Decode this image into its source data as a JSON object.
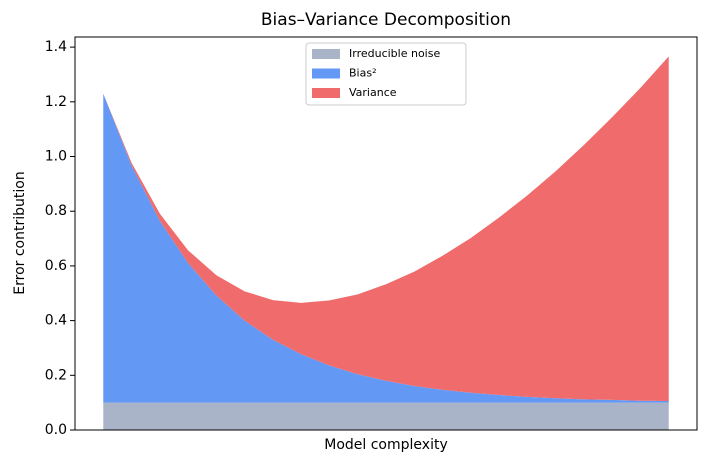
{
  "chart_data": {
    "type": "stacked_area",
    "title": "Bias–Variance Decomposition",
    "xlabel": "Model complexity",
    "ylabel": "Error contribution",
    "x": [
      0,
      0.5,
      1,
      1.5,
      2,
      2.5,
      3,
      3.5,
      4,
      4.5,
      5,
      5.5,
      6,
      6.5,
      7,
      7.5,
      8,
      8.5,
      9,
      9.5,
      10
    ],
    "xlim": [
      -0.5,
      10.5
    ],
    "series": [
      {
        "name": "Irreducible noise",
        "color": "#aab4c8",
        "values": [
          0.1,
          0.1,
          0.1,
          0.1,
          0.1,
          0.1,
          0.1,
          0.1,
          0.1,
          0.1,
          0.1,
          0.1,
          0.1,
          0.1,
          0.1,
          0.1,
          0.1,
          0.1,
          0.1,
          0.1,
          0.1
        ]
      },
      {
        "name": "Bias²",
        "color": "#6399f5",
        "values": [
          1.13,
          0.867,
          0.665,
          0.51,
          0.392,
          0.3,
          0.23,
          0.177,
          0.136,
          0.104,
          0.08,
          0.061,
          0.047,
          0.036,
          0.028,
          0.021,
          0.016,
          0.012,
          0.01,
          0.007,
          0.006
        ]
      },
      {
        "name": "Variance",
        "color": "#f06b6b",
        "values": [
          0,
          0.01,
          0.026,
          0.047,
          0.074,
          0.107,
          0.145,
          0.188,
          0.238,
          0.292,
          0.353,
          0.418,
          0.49,
          0.566,
          0.649,
          0.737,
          0.83,
          0.93,
          1.034,
          1.144,
          1.26
        ]
      }
    ],
    "ylim": [
      0,
      1.437
    ],
    "yticks": [
      {
        "value": 0,
        "label": "0.0"
      },
      {
        "value": 0.2,
        "label": "0.2"
      },
      {
        "value": 0.4,
        "label": "0.4"
      },
      {
        "value": 0.6,
        "label": "0.6"
      },
      {
        "value": 0.8,
        "label": "0.8"
      },
      {
        "value": 1,
        "label": "1.0"
      },
      {
        "value": 1.2,
        "label": "1.2"
      },
      {
        "value": 1.4,
        "label": "1.4"
      }
    ],
    "legend": "upper center"
  }
}
